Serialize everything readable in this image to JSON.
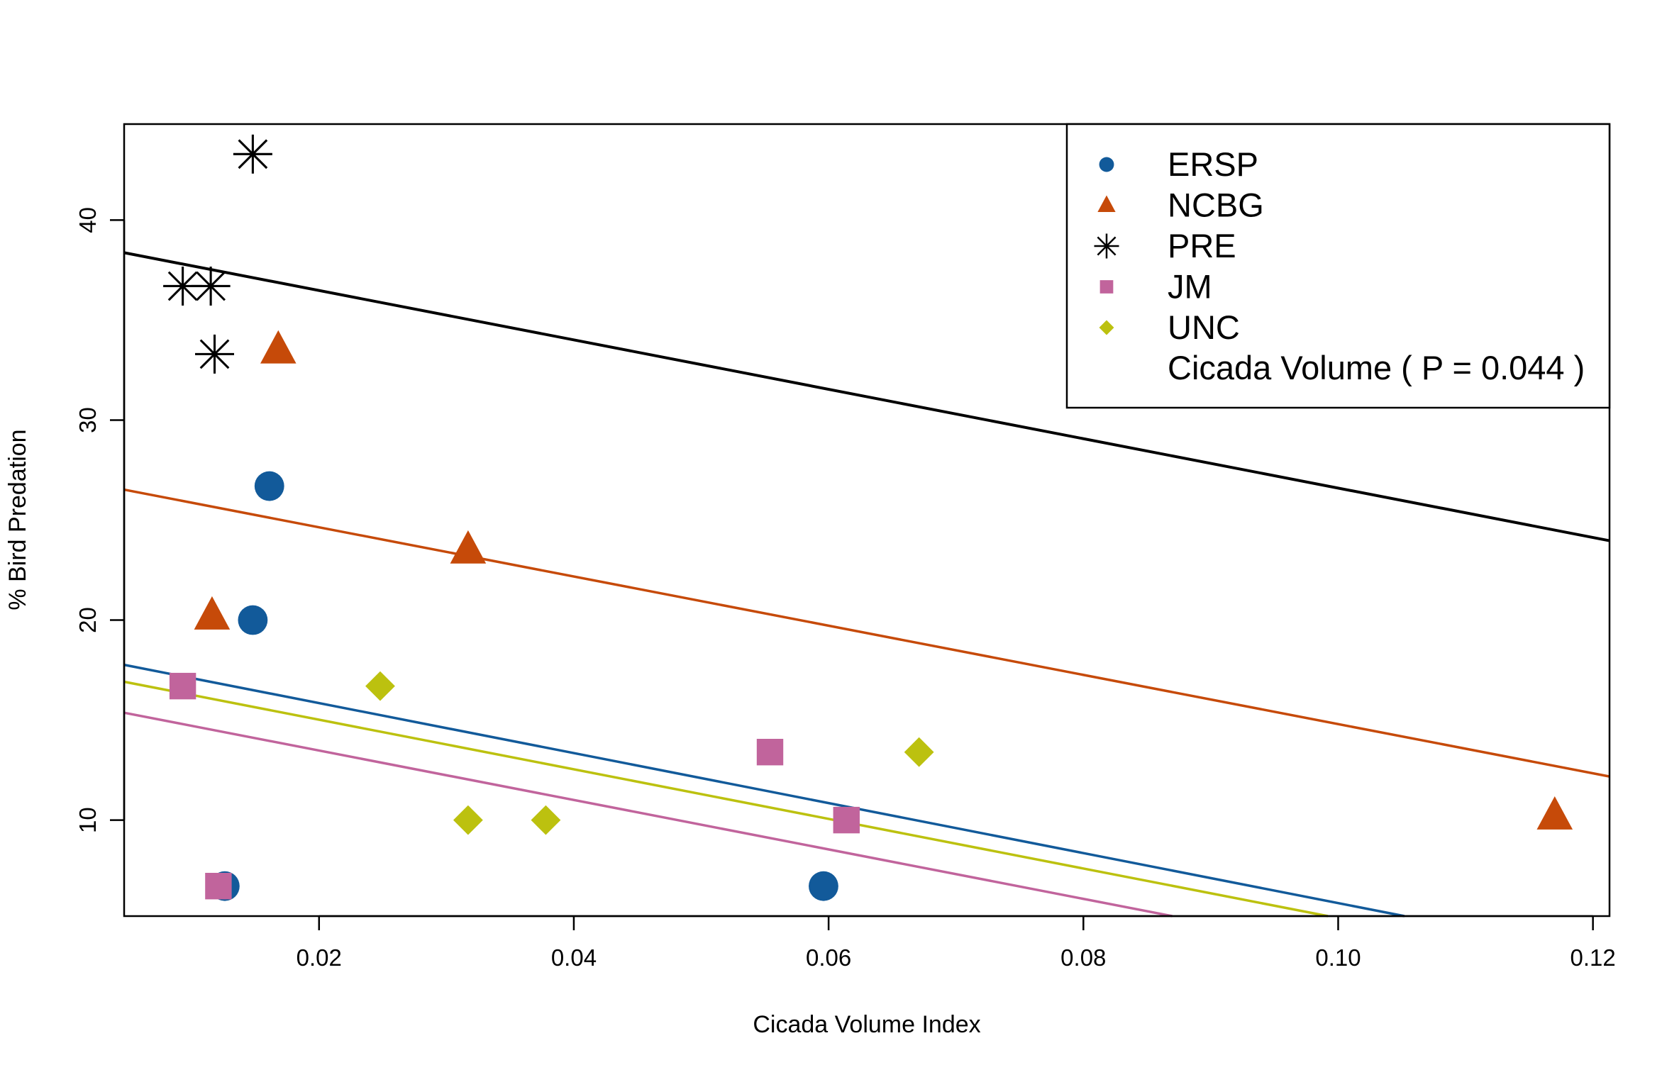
{
  "chart_data": {
    "type": "scatter",
    "title": "",
    "xlabel": "Cicada Volume Index",
    "ylabel": "% Bird Predation",
    "xlim": [
      0.0047,
      0.1213
    ],
    "ylim": [
      5.2,
      44.8
    ],
    "xticks": [
      0.02,
      0.04,
      0.06,
      0.08,
      0.1,
      0.12
    ],
    "xtick_labels": [
      "0.02",
      "0.04",
      "0.06",
      "0.08",
      "0.10",
      "0.12"
    ],
    "yticks": [
      10,
      20,
      30,
      40
    ],
    "ytick_labels": [
      "10",
      "20",
      "30",
      "40"
    ],
    "grid": false,
    "legend_position": "top-right",
    "series": [
      {
        "name": "ERSP",
        "color": "#125a9a",
        "marker": "circle",
        "points": [
          [
            0.0126,
            6.7
          ],
          [
            0.0148,
            20.0
          ],
          [
            0.0161,
            26.7
          ],
          [
            0.0596,
            6.7
          ]
        ],
        "fit": {
          "intercept": 18.35,
          "slope": -125.0
        }
      },
      {
        "name": "NCBG",
        "color": "#c64a09",
        "marker": "triangle",
        "points": [
          [
            0.0116,
            20.2
          ],
          [
            0.0168,
            33.5
          ],
          [
            0.0317,
            23.5
          ],
          [
            0.117,
            10.2
          ]
        ],
        "fit": {
          "intercept": 27.1,
          "slope": -123.0
        }
      },
      {
        "name": "PRE",
        "color": "#000000",
        "marker": "asterisk",
        "points": [
          [
            0.0093,
            36.7
          ],
          [
            0.0115,
            36.7
          ],
          [
            0.0118,
            33.3
          ],
          [
            0.0148,
            43.3
          ]
        ],
        "fit": {
          "intercept": 38.95,
          "slope": -123.5
        }
      },
      {
        "name": "JM",
        "color": "#c1649c",
        "marker": "square",
        "points": [
          [
            0.0093,
            16.7
          ],
          [
            0.0121,
            6.7
          ],
          [
            0.0554,
            13.4
          ],
          [
            0.0614,
            10.0
          ]
        ],
        "fit": {
          "intercept": 15.95,
          "slope": -123.6
        }
      },
      {
        "name": "UNC",
        "color": "#bcc10f",
        "marker": "diamond",
        "points": [
          [
            0.0248,
            16.7
          ],
          [
            0.0317,
            10.0
          ],
          [
            0.0378,
            10.0
          ],
          [
            0.0671,
            13.4
          ]
        ],
        "fit": {
          "intercept": 17.5,
          "slope": -124.0
        }
      }
    ],
    "legend": {
      "entries": [
        "ERSP",
        "NCBG",
        "PRE",
        "JM",
        "UNC"
      ],
      "note": "Cicada Volume ( P = 0.044 )"
    }
  }
}
